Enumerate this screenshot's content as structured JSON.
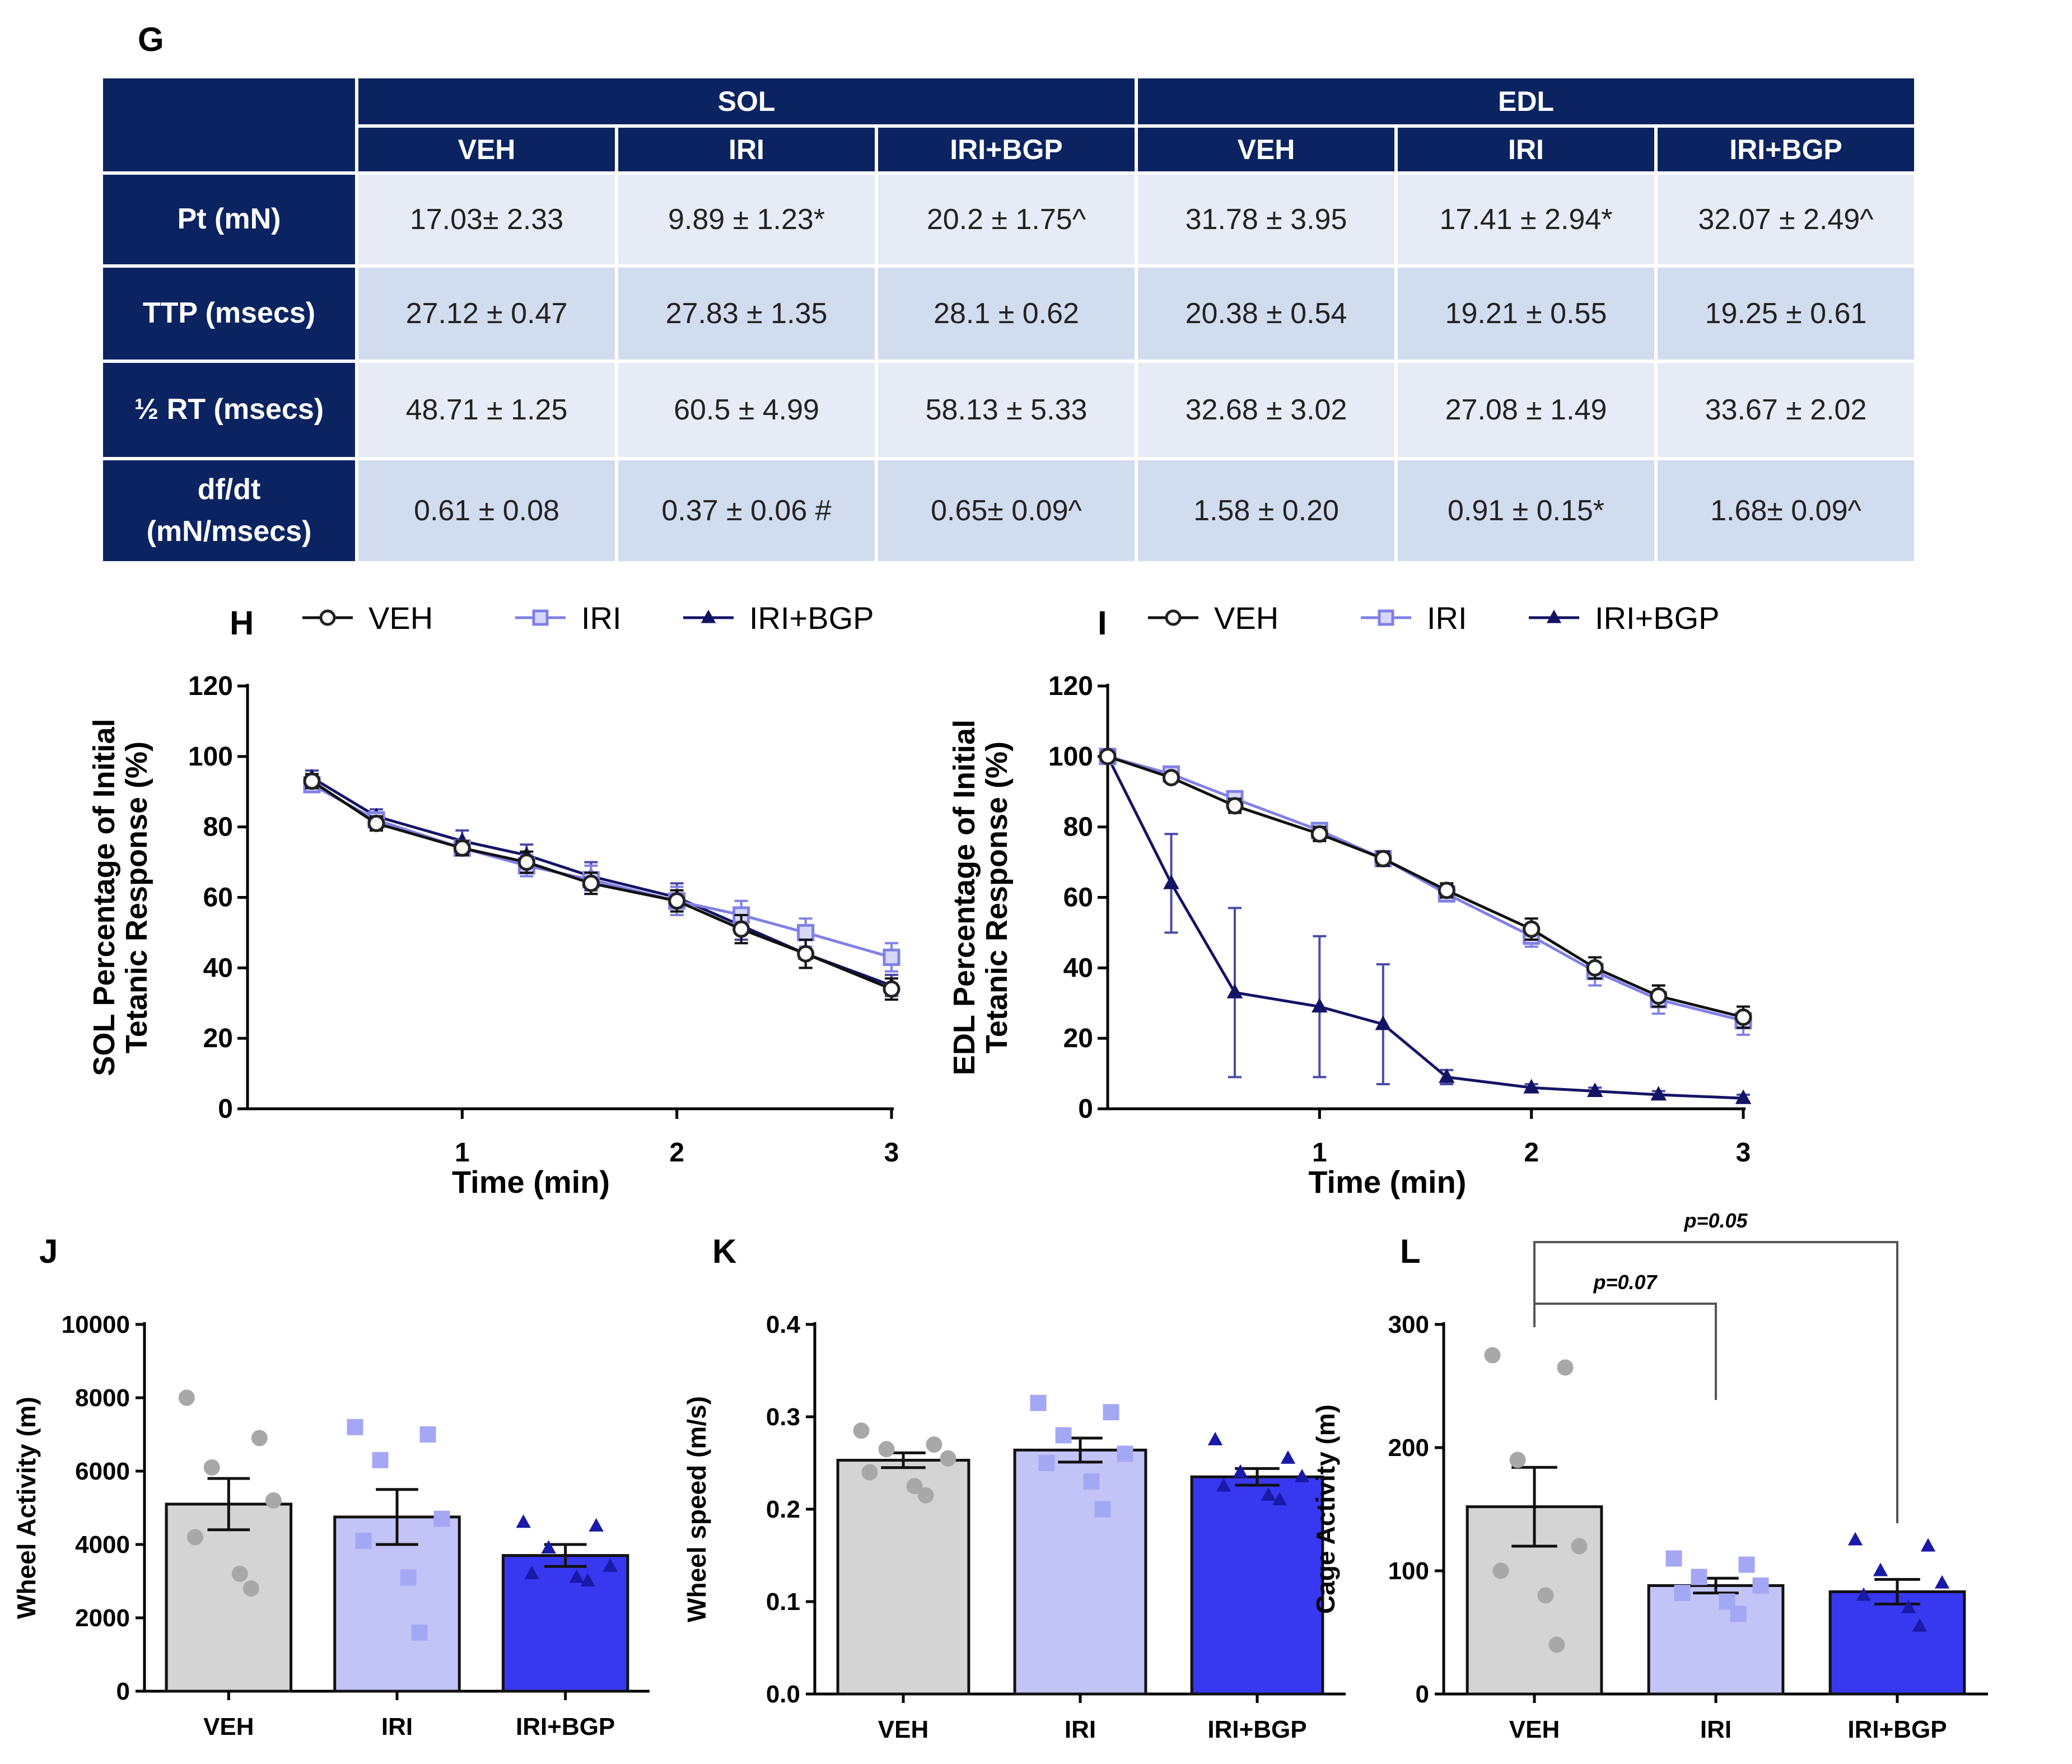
{
  "panels": {
    "G": "G",
    "H": "H",
    "I": "I",
    "J": "J",
    "K": "K",
    "L": "L"
  },
  "table": {
    "groups": [
      "SOL",
      "EDL"
    ],
    "columns": [
      "VEH",
      "IRI",
      "IRI+BGP",
      "VEH",
      "IRI",
      "IRI+BGP"
    ],
    "rows": [
      {
        "label": "Pt (mN)",
        "cells": [
          "17.03± 2.33",
          "9.89 ± 1.23*",
          "20.2 ± 1.75^",
          "31.78 ± 3.95",
          "17.41 ± 2.94*",
          "32.07 ± 2.49^"
        ]
      },
      {
        "label": "TTP  (msecs)",
        "cells": [
          "27.12 ± 0.47",
          "27.83 ± 1.35",
          "28.1 ± 0.62",
          "20.38 ± 0.54",
          "19.21 ± 0.55",
          "19.25 ± 0.61"
        ]
      },
      {
        "label": "½ RT (msecs)",
        "cells": [
          "48.71 ± 1.25",
          "60.5 ± 4.99",
          "58.13 ± 5.33",
          "32.68 ± 3.02",
          "27.08 ± 1.49",
          "33.67 ± 2.02"
        ]
      },
      {
        "label": "df/dt (mN/msecs)",
        "label_lines": [
          "df/dt",
          "(mN/msecs)"
        ],
        "cells": [
          "0.61 ± 0.08",
          "0.37 ± 0.06 #",
          "0.65± 0.09^",
          "1.58 ± 0.20",
          "0.91 ± 0.15*",
          "1.68± 0.09^"
        ]
      }
    ]
  },
  "colors": {
    "veh_bar": "#d4d4d4",
    "veh_dot": "#a8a8a8",
    "iri_bar": "#c2c4f8",
    "iri_dot": "#a4a8f4",
    "bgp_bar": "#3838f0",
    "bgp_dot": "#1a1aa8",
    "iri_line": "#8080e8",
    "bgp_line": "#141466",
    "table_dark": "#0b2461"
  },
  "chart_data": [
    {
      "id": "H",
      "type": "line",
      "xlabel": "Time (min)",
      "ylabel": [
        "SOL Percentage of Initial",
        "Tetanic Response (%)"
      ],
      "xlim": [
        0,
        3
      ],
      "ylim": [
        0,
        120
      ],
      "xticks": [
        1,
        2,
        3
      ],
      "yticks": [
        0,
        20,
        40,
        60,
        80,
        100,
        120
      ],
      "x": [
        0.3,
        0.6,
        1.0,
        1.3,
        1.6,
        2.0,
        2.3,
        2.6,
        3.0
      ],
      "series": [
        {
          "name": "VEH",
          "marker": "circle",
          "values": [
            93,
            81,
            74,
            70,
            64,
            59,
            51,
            44,
            34
          ],
          "errors": [
            2,
            2,
            2,
            3,
            3,
            3,
            4,
            4,
            3
          ]
        },
        {
          "name": "IRI",
          "marker": "square",
          "values": [
            92,
            82,
            74,
            69,
            65,
            59,
            55,
            50,
            43
          ],
          "errors": [
            2,
            2,
            2,
            3,
            4,
            4,
            4,
            4,
            4
          ]
        },
        {
          "name": "IRI+BGP",
          "marker": "triangle",
          "values": [
            94,
            83,
            76,
            72,
            66,
            60,
            52,
            44,
            35
          ],
          "errors": [
            2,
            2,
            3,
            3,
            4,
            4,
            4,
            4,
            3
          ]
        }
      ]
    },
    {
      "id": "I",
      "type": "line",
      "xlabel": "Time (min)",
      "ylabel": [
        "EDL Percentage of Initial",
        "Tetanic Response (%)"
      ],
      "xlim": [
        0,
        3
      ],
      "ylim": [
        0,
        120
      ],
      "xticks": [
        1,
        2,
        3
      ],
      "yticks": [
        0,
        20,
        40,
        60,
        80,
        100,
        120
      ],
      "x": [
        0,
        0.3,
        0.6,
        1.0,
        1.3,
        1.6,
        2.0,
        2.3,
        2.6,
        3.0
      ],
      "series": [
        {
          "name": "VEH",
          "marker": "circle",
          "values": [
            100,
            94,
            86,
            78,
            71,
            62,
            51,
            40,
            32,
            26
          ],
          "errors": [
            0,
            1,
            2,
            2,
            2,
            2,
            3,
            3,
            3,
            3
          ]
        },
        {
          "name": "IRI",
          "marker": "square",
          "values": [
            100,
            95,
            88,
            79,
            71,
            61,
            49,
            39,
            31,
            25
          ],
          "errors": [
            0,
            1,
            2,
            2,
            2,
            2,
            3,
            4,
            4,
            4
          ]
        },
        {
          "name": "IRI+BGP",
          "marker": "triangle",
          "values": [
            100,
            64,
            33,
            29,
            24,
            9,
            6,
            5,
            4,
            3
          ],
          "errors": [
            0,
            14,
            24,
            20,
            17,
            2,
            1,
            1,
            1,
            1
          ]
        }
      ]
    },
    {
      "id": "J",
      "type": "bar",
      "categories": [
        "VEH",
        "IRI",
        "IRI+BGP"
      ],
      "values": [
        5100,
        4750,
        3700
      ],
      "errors": [
        700,
        750,
        300
      ],
      "points": [
        [
          8000,
          6900,
          6100,
          5200,
          4200,
          3200,
          2800
        ],
        [
          7200,
          7000,
          6300,
          4700,
          4100,
          3100,
          1600
        ],
        [
          4600,
          4500,
          3900,
          3400,
          3200,
          3100,
          3000
        ]
      ],
      "ylabel": "Wheel Activity (m)",
      "ylim": [
        0,
        10000
      ],
      "yticks": [
        0,
        2000,
        4000,
        6000,
        8000,
        10000
      ]
    },
    {
      "id": "K",
      "type": "bar",
      "categories": [
        "VEH",
        "IRI",
        "IRI+BGP"
      ],
      "values": [
        0.253,
        0.264,
        0.235
      ],
      "errors": [
        0.008,
        0.013,
        0.009
      ],
      "points": [
        [
          0.285,
          0.27,
          0.265,
          0.255,
          0.24,
          0.225,
          0.215
        ],
        [
          0.315,
          0.305,
          0.28,
          0.26,
          0.25,
          0.23,
          0.2
        ],
        [
          0.275,
          0.255,
          0.24,
          0.235,
          0.225,
          0.215,
          0.21
        ]
      ],
      "ylabel": "Wheel speed (m/s)",
      "ylim": [
        0,
        0.4
      ],
      "yticks": [
        0.0,
        0.1,
        0.2,
        0.3,
        0.4
      ]
    },
    {
      "id": "L",
      "type": "bar",
      "categories": [
        "VEH",
        "IRI",
        "IRI+BGP"
      ],
      "values": [
        152,
        88,
        83
      ],
      "errors": [
        32,
        6,
        10
      ],
      "points": [
        [
          275,
          265,
          190,
          120,
          100,
          80,
          40
        ],
        [
          110,
          105,
          95,
          88,
          82,
          75,
          65
        ],
        [
          125,
          120,
          100,
          90,
          80,
          70,
          55
        ]
      ],
      "ylabel": "Cage Activity (m)",
      "ylim": [
        0,
        300
      ],
      "yticks": [
        0,
        100,
        200,
        300
      ],
      "annotations": [
        {
          "text": "p=0.07",
          "from": "VEH",
          "to": "IRI"
        },
        {
          "text": "p=0.05",
          "from": "VEH",
          "to": "IRI+BGP"
        }
      ]
    }
  ]
}
